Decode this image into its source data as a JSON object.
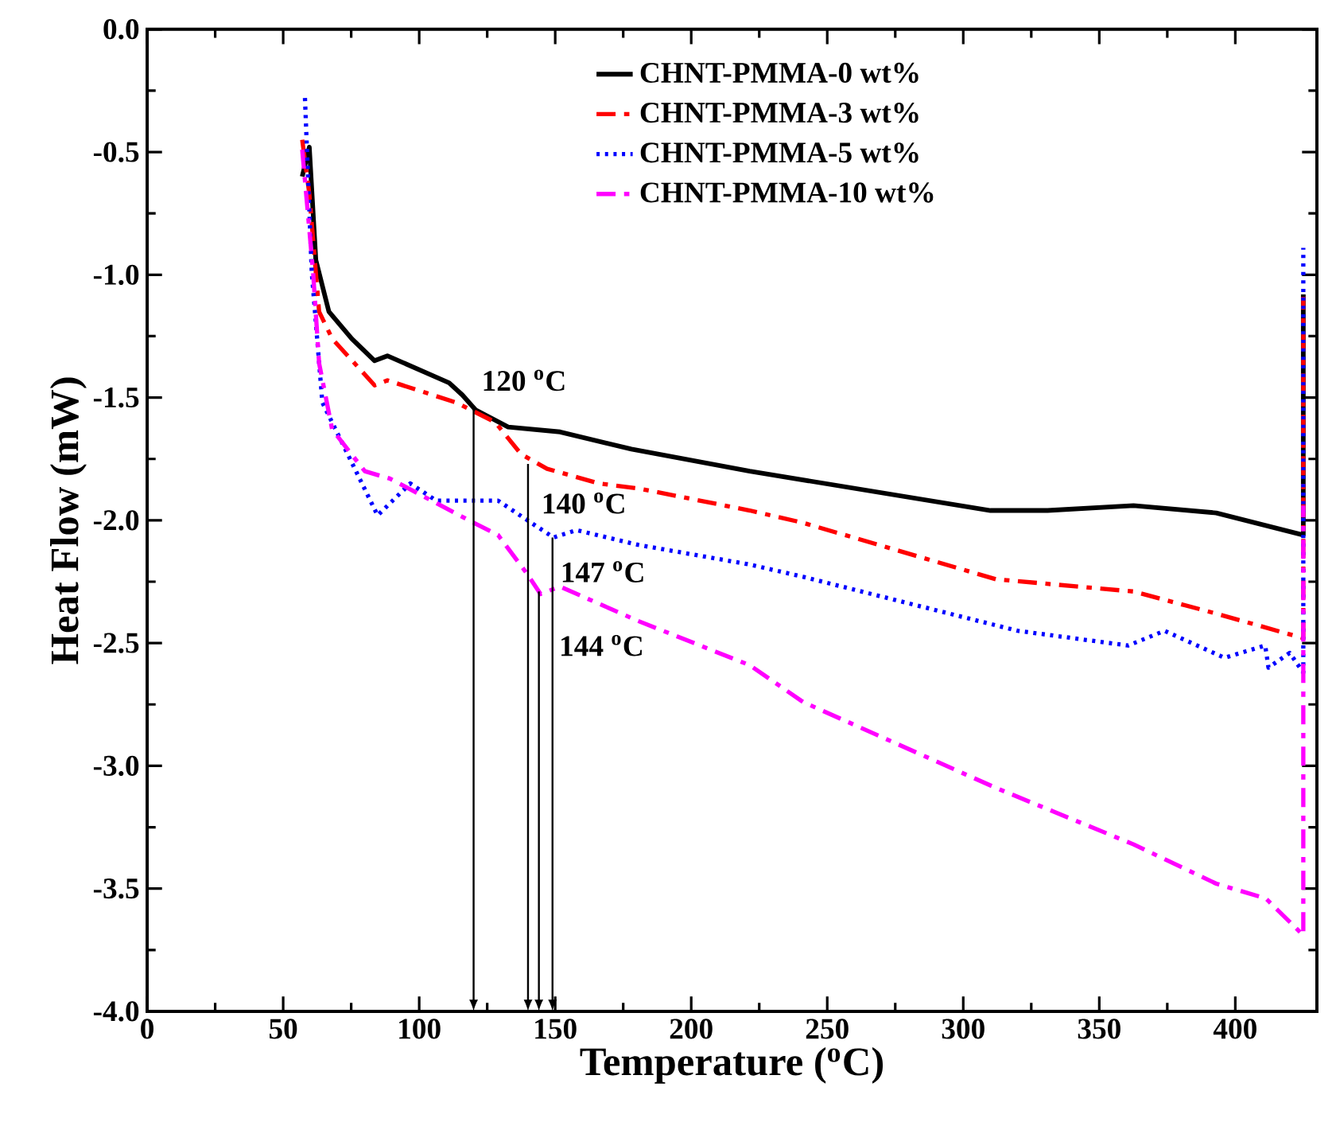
{
  "chart_data": {
    "type": "line",
    "xlabel": "Temperature ($^{o}$C)",
    "ylabel": "Heat Flow (mW)",
    "xlim": [
      0,
      430
    ],
    "ylim": [
      -4.0,
      0.0
    ],
    "xticks": [
      0,
      50,
      100,
      150,
      200,
      250,
      300,
      350,
      400
    ],
    "yticks": [
      {
        "value": 0,
        "label": "0.0"
      },
      {
        "value": -0.5,
        "label": "-0.5"
      },
      {
        "value": -1,
        "label": "-1.0"
      },
      {
        "value": -1.5,
        "label": "-1.5"
      },
      {
        "value": -2,
        "label": "-2.0"
      },
      {
        "value": -2.5,
        "label": "-2.5"
      },
      {
        "value": -3,
        "label": "-3.0"
      },
      {
        "value": -3.5,
        "label": "-3.5"
      },
      {
        "value": -4,
        "label": "-4.0"
      }
    ],
    "legend": "top",
    "grid": false,
    "marker": "none",
    "series": [
      {
        "name": "CHNT-PMMA-0 wt%",
        "color": "#000000",
        "line_style": "solid",
        "x": [
          57,
          59.6,
          62,
          66.8,
          75.2,
          83.6,
          88.3,
          111,
          115.9,
          120.7,
          132.7,
          151.8,
          178,
          221.5,
          310,
          331,
          362.6,
          393,
          425,
          425
        ],
        "values": [
          -0.6,
          -0.48,
          -0.94,
          -1.15,
          -1.26,
          -1.35,
          -1.33,
          -1.44,
          -1.49,
          -1.55,
          -1.62,
          -1.64,
          -1.71,
          -1.8,
          -1.96,
          -1.96,
          -1.94,
          -1.97,
          -2.06,
          -1.08
        ]
      },
      {
        "name": "CHNT-PMMA-3 wt%",
        "color": "#ff0000",
        "line_style": "dashdot",
        "x": [
          57,
          59.6,
          63.2,
          68,
          83.6,
          88.3,
          113.5,
          127.9,
          137.4,
          147,
          166.2,
          180.5,
          221.5,
          241.1,
          312,
          362.6,
          393,
          425,
          425
        ],
        "values": [
          -0.45,
          -0.67,
          -1.15,
          -1.26,
          -1.45,
          -1.43,
          -1.52,
          -1.6,
          -1.73,
          -1.79,
          -1.85,
          -1.87,
          -1.96,
          -2.01,
          -2.24,
          -2.29,
          -2.38,
          -2.48,
          -1.09
        ]
      },
      {
        "name": "CHNT-PMMA-5 wt%",
        "color": "#0000ff",
        "line_style": "dotted",
        "x": [
          58,
          60.5,
          64.4,
          72.8,
          84.7,
          96.7,
          106.3,
          129,
          139.8,
          149.4,
          157.8,
          180.5,
          221.5,
          241.1,
          320,
          360.6,
          374,
          396,
          411,
          412.2,
          420,
          425,
          425
        ],
        "values": [
          -0.28,
          -0.99,
          -1.52,
          -1.71,
          -1.98,
          -1.85,
          -1.92,
          -1.92,
          -2.0,
          -2.07,
          -2.04,
          -2.1,
          -2.18,
          -2.23,
          -2.45,
          -2.51,
          -2.45,
          -2.56,
          -2.51,
          -2.6,
          -2.54,
          -2.62,
          -0.89
        ]
      },
      {
        "name": "CHNT-PMMA-10 wt%",
        "color": "#ff00ff",
        "line_style": "dashdot",
        "x": [
          57,
          61,
          63.2,
          68,
          80,
          89.2,
          118.3,
          129,
          139.8,
          144.6,
          151.8,
          180.5,
          221.5,
          241.1,
          312,
          362.6,
          393,
          411.2,
          425,
          425
        ],
        "values": [
          -0.49,
          -0.99,
          -1.36,
          -1.63,
          -1.8,
          -1.83,
          -2.0,
          -2.06,
          -2.22,
          -2.3,
          -2.27,
          -2.41,
          -2.59,
          -2.74,
          -3.09,
          -3.32,
          -3.48,
          -3.54,
          -3.69,
          -1.94
        ]
      }
    ],
    "annotations": [
      {
        "text": "120 $^{o}$C",
        "x": 120,
        "y": -1.55
      },
      {
        "text": "140 $^{o}$C",
        "x": 140,
        "y": -1.77
      },
      {
        "text": "144 $^{o}$C",
        "x": 144,
        "y": -2.29
      },
      {
        "text": "147 $^{o}$C",
        "x": 149,
        "y": -2.07
      }
    ]
  }
}
